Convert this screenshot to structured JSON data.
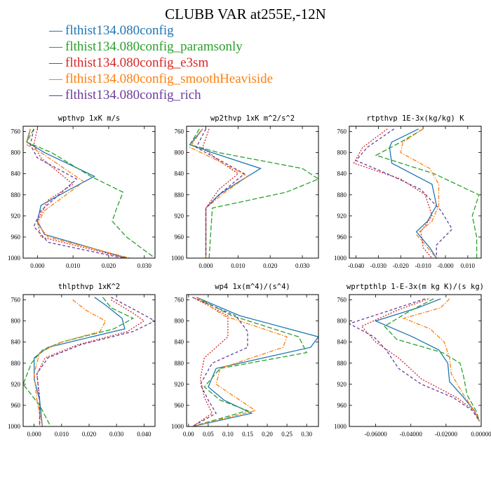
{
  "title": "CLUBB VAR at255E,-12N",
  "colors": {
    "config": "#1f77b4",
    "paramsonly": "#2ca02c",
    "e3sm": "#d62728",
    "smooth": "#ff7f0e",
    "rich": "#6a3d9a"
  },
  "legend": [
    {
      "key": "config",
      "label": "flthist134.080config",
      "color": "#1f77b4",
      "dash": "solid"
    },
    {
      "key": "paramsonly",
      "label": "flthist134.080config_paramsonly",
      "color": "#2ca02c",
      "dash": "longdash"
    },
    {
      "key": "e3sm",
      "label": "flthist134.080config_e3sm",
      "color": "#d62728",
      "dash": "dot"
    },
    {
      "key": "smooth",
      "label": "flthist134.080config_smoothHeaviside",
      "color": "#ff7f0e",
      "dash": "dashdot"
    },
    {
      "key": "rich",
      "label": "flthist134.080config_rich",
      "color": "#6a3d9a",
      "dash": "dash"
    }
  ],
  "chart_data": [
    {
      "type": "line",
      "title": "wpthvp   1xK m/s",
      "xlim": [
        -0.004,
        0.033
      ],
      "ylim": [
        1000,
        750
      ],
      "xticks": [
        0.0,
        0.01,
        0.02,
        0.03
      ],
      "xticklabels": [
        "0.000",
        "0.010",
        "0.020",
        "0.030"
      ],
      "yticks": [
        760,
        800,
        840,
        880,
        920,
        960,
        1000
      ],
      "series": [
        {
          "key": "config",
          "y": [
            755,
            780,
            800,
            845,
            870,
            900,
            930,
            955,
            1000
          ],
          "x": [
            -0.002,
            -0.003,
            0.002,
            0.016,
            0.009,
            0.001,
            0.0,
            0.002,
            0.025
          ]
        },
        {
          "key": "paramsonly",
          "y": [
            755,
            780,
            800,
            845,
            875,
            910,
            930,
            960,
            1000
          ],
          "x": [
            -0.001,
            -0.003,
            0.004,
            0.015,
            0.024,
            0.022,
            0.021,
            0.025,
            0.033
          ]
        },
        {
          "key": "e3sm",
          "y": [
            755,
            785,
            810,
            860,
            890,
            930,
            960,
            1000
          ],
          "x": [
            0.0,
            -0.001,
            0.001,
            0.01,
            0.003,
            0.0,
            0.001,
            0.025
          ]
        },
        {
          "key": "smooth",
          "y": [
            755,
            785,
            800,
            855,
            880,
            910,
            935,
            960,
            1000
          ],
          "x": [
            -0.002,
            -0.003,
            0.001,
            0.013,
            0.008,
            0.002,
            0.0,
            0.003,
            0.026
          ]
        },
        {
          "key": "rich",
          "y": [
            755,
            785,
            810,
            850,
            880,
            910,
            940,
            970,
            1000
          ],
          "x": [
            -0.001,
            -0.002,
            0.0,
            0.011,
            0.006,
            0.001,
            -0.001,
            0.003,
            0.024
          ]
        }
      ]
    },
    {
      "type": "line",
      "title": "wp2thvp   1xK m^2/s^2",
      "xlim": [
        -0.006,
        0.035
      ],
      "ylim": [
        1000,
        750
      ],
      "xticks": [
        0.0,
        0.01,
        0.02,
        0.03
      ],
      "xticklabels": [
        "0.000",
        "0.010",
        "0.020",
        "0.030"
      ],
      "yticks": [
        760,
        800,
        840,
        880,
        920,
        960,
        1000
      ],
      "series": [
        {
          "key": "config",
          "y": [
            755,
            785,
            800,
            830,
            860,
            880,
            905,
            1000
          ],
          "x": [
            -0.001,
            -0.005,
            0.002,
            0.017,
            0.009,
            0.004,
            0.0,
            0.0
          ]
        },
        {
          "key": "paramsonly",
          "y": [
            755,
            785,
            800,
            830,
            850,
            875,
            905,
            1000
          ],
          "x": [
            -0.002,
            -0.005,
            0.004,
            0.03,
            0.035,
            0.025,
            0.002,
            0.001
          ]
        },
        {
          "key": "e3sm",
          "y": [
            755,
            790,
            815,
            840,
            870,
            905,
            1000
          ],
          "x": [
            0.001,
            -0.001,
            0.004,
            0.01,
            0.004,
            0.0,
            0.0
          ]
        },
        {
          "key": "smooth",
          "y": [
            755,
            790,
            810,
            845,
            875,
            905,
            1000
          ],
          "x": [
            -0.001,
            -0.005,
            0.002,
            0.013,
            0.006,
            0.0,
            0.0
          ]
        },
        {
          "key": "rich",
          "y": [
            755,
            790,
            810,
            840,
            875,
            905,
            1000
          ],
          "x": [
            0.0,
            -0.003,
            0.003,
            0.012,
            0.005,
            0.0,
            0.0
          ]
        }
      ]
    },
    {
      "type": "line",
      "title": "rtpthvp   1E-3x(kg/kg) K",
      "xlim": [
        -0.043,
        0.016
      ],
      "ylim": [
        1000,
        750
      ],
      "xticks": [
        -0.04,
        -0.03,
        -0.02,
        -0.01,
        0.0,
        0.01
      ],
      "xticklabels": [
        "-0.040",
        "-0.030",
        "-0.020",
        "-0.010",
        "-0.000",
        "0.010"
      ],
      "yticks": [
        760,
        800,
        840,
        880,
        920,
        960,
        1000
      ],
      "series": [
        {
          "key": "config",
          "y": [
            755,
            780,
            790,
            820,
            860,
            900,
            930,
            950,
            980,
            1000
          ],
          "x": [
            -0.012,
            -0.024,
            -0.025,
            -0.024,
            -0.006,
            -0.004,
            -0.008,
            -0.013,
            -0.007,
            -0.004
          ]
        },
        {
          "key": "paramsonly",
          "y": [
            755,
            780,
            805,
            840,
            880,
            920,
            960,
            1000
          ],
          "x": [
            -0.01,
            -0.02,
            -0.031,
            -0.005,
            0.015,
            0.012,
            0.014,
            0.014
          ]
        },
        {
          "key": "e3sm",
          "y": [
            755,
            790,
            820,
            850,
            880,
            920,
            950,
            980,
            1000
          ],
          "x": [
            -0.026,
            -0.037,
            -0.041,
            -0.02,
            -0.009,
            -0.006,
            -0.011,
            -0.01,
            -0.006
          ]
        },
        {
          "key": "smooth",
          "y": [
            755,
            780,
            800,
            830,
            860,
            900,
            930,
            955,
            980,
            1000
          ],
          "x": [
            -0.01,
            -0.019,
            -0.02,
            -0.007,
            -0.003,
            -0.003,
            -0.006,
            -0.013,
            -0.008,
            -0.004
          ]
        },
        {
          "key": "rich",
          "y": [
            755,
            790,
            815,
            840,
            870,
            910,
            945,
            975,
            1000
          ],
          "x": [
            -0.023,
            -0.035,
            -0.04,
            -0.026,
            -0.011,
            -0.002,
            0.003,
            -0.004,
            -0.004
          ]
        }
      ]
    },
    {
      "type": "line",
      "title": "thlpthvp   1xK^2",
      "xlim": [
        -0.004,
        0.044
      ],
      "ylim": [
        1000,
        750
      ],
      "xticks": [
        0.0,
        0.01,
        0.02,
        0.03,
        0.04
      ],
      "xticklabels": [
        "0.000",
        "0.010",
        "0.020",
        "0.030",
        "0.040"
      ],
      "yticks": [
        760,
        800,
        840,
        880,
        920,
        960,
        1000
      ],
      "series": [
        {
          "key": "config",
          "y": [
            755,
            770,
            795,
            815,
            835,
            850,
            870,
            910,
            950,
            1000
          ],
          "x": [
            0.022,
            0.026,
            0.032,
            0.033,
            0.017,
            0.005,
            0.0,
            0.0,
            0.002,
            0.003
          ]
        },
        {
          "key": "paramsonly",
          "y": [
            755,
            775,
            795,
            815,
            840,
            855,
            880,
            920,
            960,
            1000
          ],
          "x": [
            0.025,
            0.028,
            0.036,
            0.029,
            0.01,
            0.003,
            -0.001,
            -0.004,
            0.002,
            0.006
          ]
        },
        {
          "key": "e3sm",
          "y": [
            760,
            785,
            800,
            820,
            845,
            870,
            900,
            945,
            1000
          ],
          "x": [
            0.028,
            0.036,
            0.04,
            0.034,
            0.016,
            0.004,
            0.001,
            0.002,
            0.002
          ]
        },
        {
          "key": "smooth",
          "y": [
            760,
            780,
            800,
            820,
            840,
            860,
            900,
            950,
            1000
          ],
          "x": [
            0.014,
            0.019,
            0.026,
            0.024,
            0.01,
            0.002,
            0.0,
            0.001,
            0.003
          ]
        },
        {
          "key": "rich",
          "y": [
            755,
            780,
            800,
            820,
            845,
            870,
            900,
            950,
            1000
          ],
          "x": [
            0.028,
            0.037,
            0.044,
            0.036,
            0.017,
            0.005,
            0.001,
            0.002,
            0.002
          ]
        }
      ]
    },
    {
      "type": "line",
      "title": "wp4   1x(m^4)/(s^4)",
      "xlim": [
        -0.005,
        0.33
      ],
      "ylim": [
        1000,
        750
      ],
      "xticks": [
        0.0,
        0.05,
        0.1,
        0.15,
        0.2,
        0.25,
        0.3
      ],
      "xticklabels": [
        "0.00",
        "0.05",
        "0.10",
        "0.15",
        "0.20",
        "0.25",
        "0.30"
      ],
      "yticks": [
        760,
        800,
        840,
        880,
        920,
        960,
        1000
      ],
      "series": [
        {
          "key": "config",
          "y": [
            755,
            790,
            830,
            850,
            890,
            925,
            950,
            975,
            1000
          ],
          "x": [
            0.02,
            0.13,
            0.33,
            0.31,
            0.07,
            0.05,
            0.09,
            0.16,
            0.01
          ]
        },
        {
          "key": "paramsonly",
          "y": [
            755,
            790,
            830,
            860,
            890,
            925,
            950,
            970,
            1000
          ],
          "x": [
            0.02,
            0.11,
            0.28,
            0.3,
            0.08,
            0.04,
            0.08,
            0.15,
            0.01
          ]
        },
        {
          "key": "e3sm",
          "y": [
            755,
            790,
            830,
            870,
            910,
            945,
            975,
            1000
          ],
          "x": [
            0.01,
            0.1,
            0.1,
            0.04,
            0.03,
            0.04,
            0.06,
            0.01
          ]
        },
        {
          "key": "smooth",
          "y": [
            755,
            790,
            830,
            850,
            890,
            920,
            945,
            970,
            1000
          ],
          "x": [
            0.02,
            0.09,
            0.25,
            0.24,
            0.08,
            0.07,
            0.12,
            0.17,
            0.01
          ]
        },
        {
          "key": "rich",
          "y": [
            755,
            790,
            820,
            850,
            880,
            920,
            950,
            975,
            1000
          ],
          "x": [
            0.01,
            0.12,
            0.15,
            0.15,
            0.06,
            0.03,
            0.05,
            0.07,
            0.01
          ]
        }
      ]
    },
    {
      "type": "line",
      "title": "wprtpthlp   1-E-3x(m kg K)/(s kg)",
      "xlim": [
        -0.075,
        0.0
      ],
      "ylim": [
        1000,
        750
      ],
      "xticks": [
        -0.06,
        -0.04,
        -0.02,
        0.0
      ],
      "xticklabels": [
        "-0.06000",
        "-0.04000",
        "-0.02000",
        "0.00000"
      ],
      "yticks": [
        760,
        800,
        840,
        880,
        920,
        960,
        1000
      ],
      "series": [
        {
          "key": "config",
          "y": [
            758,
            775,
            800,
            830,
            855,
            880,
            915,
            945,
            970,
            990
          ],
          "x": [
            -0.023,
            -0.036,
            -0.06,
            -0.039,
            -0.024,
            -0.019,
            -0.018,
            -0.01,
            -0.004,
            -0.001
          ]
        },
        {
          "key": "paramsonly",
          "y": [
            758,
            780,
            810,
            835,
            860,
            880,
            905,
            940,
            970,
            990
          ],
          "x": [
            -0.027,
            -0.04,
            -0.055,
            -0.048,
            -0.022,
            -0.012,
            -0.01,
            -0.008,
            -0.003,
            -0.001
          ]
        },
        {
          "key": "e3sm",
          "y": [
            758,
            780,
            810,
            840,
            870,
            910,
            945,
            970,
            990
          ],
          "x": [
            -0.03,
            -0.048,
            -0.068,
            -0.06,
            -0.047,
            -0.034,
            -0.014,
            -0.004,
            -0.001
          ]
        },
        {
          "key": "smooth",
          "y": [
            758,
            775,
            795,
            815,
            840,
            870,
            900,
            940,
            970,
            990
          ],
          "x": [
            -0.018,
            -0.023,
            -0.044,
            -0.029,
            -0.021,
            -0.018,
            -0.017,
            -0.01,
            -0.004,
            -0.001
          ]
        },
        {
          "key": "rich",
          "y": [
            758,
            780,
            805,
            830,
            855,
            890,
            920,
            945,
            970,
            990
          ],
          "x": [
            -0.032,
            -0.052,
            -0.075,
            -0.061,
            -0.054,
            -0.047,
            -0.034,
            -0.016,
            -0.005,
            -0.001
          ]
        }
      ]
    }
  ]
}
